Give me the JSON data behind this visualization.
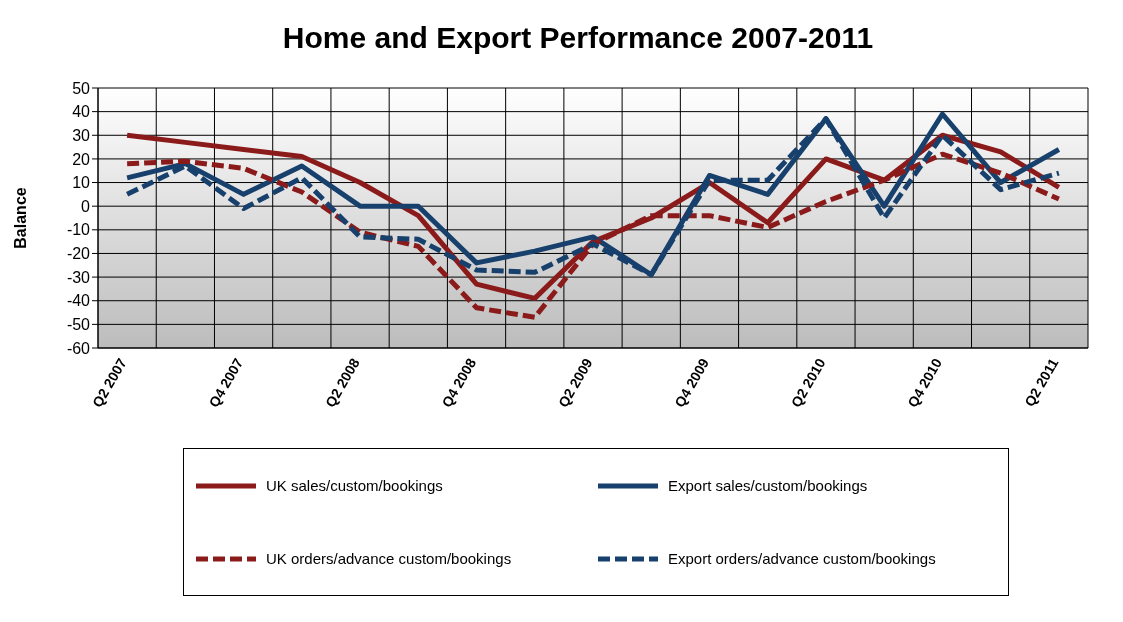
{
  "chart_data": {
    "type": "line",
    "title": "Home and Export Performance 2007-2011",
    "ylabel": "Balance",
    "categories": [
      "Q2 2007",
      null,
      "Q4 2007",
      null,
      "Q2 2008",
      null,
      "Q4 2008",
      null,
      "Q2 2009",
      null,
      "Q4 2009",
      null,
      "Q2 2010",
      null,
      "Q4 2010",
      null,
      "Q2 2011"
    ],
    "series": [
      {
        "name": "UK sales/custom/bookings",
        "color": "#8b1a1a",
        "line_style": "solid",
        "values": [
          30,
          27,
          24,
          21,
          10,
          -4,
          -33,
          -39,
          -15,
          -5,
          10,
          -7,
          20,
          11,
          30,
          23,
          8
        ]
      },
      {
        "name": "Export sales/custom/bookings",
        "color": "#17406d",
        "line_style": "solid",
        "values": [
          12,
          18,
          5,
          17,
          0,
          0,
          -24,
          -19,
          -13,
          -29,
          13,
          5,
          37,
          0,
          39,
          10,
          24
        ]
      },
      {
        "name": "UK orders/advance custom/bookings",
        "color": "#8b1a1a",
        "line_style": "dashed",
        "values": [
          18,
          19,
          16,
          6,
          -11,
          -17,
          -43,
          -47,
          -16,
          -4,
          -4,
          -9,
          2,
          11,
          22,
          14,
          3
        ]
      },
      {
        "name": "Export orders/advance custom/bookings",
        "color": "#17406d",
        "line_style": "dashed",
        "values": [
          5,
          17,
          -1,
          12,
          -13,
          -14,
          -27,
          -28,
          -16,
          -29,
          11,
          11,
          37,
          -5,
          30,
          7,
          14
        ]
      }
    ],
    "ylim": [
      -60,
      50
    ],
    "yticks": [
      -60,
      -50,
      -40,
      -30,
      -20,
      -10,
      0,
      10,
      20,
      30,
      40,
      50
    ],
    "grid": true,
    "legend": "bottom",
    "marker": "none"
  }
}
